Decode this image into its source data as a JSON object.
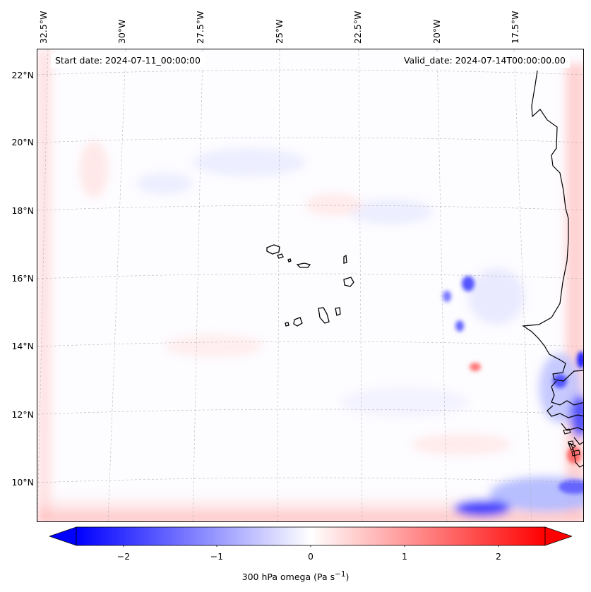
{
  "map": {
    "title_left": "Start date: 2024-07-11_00:00:00",
    "title_right": "Valid_date: 2024-07-14T00:00:00.00",
    "variable": "300 hPa omega",
    "units": "Pa s",
    "units_exponent": "−1",
    "longitude_labels": [
      "32.5°W",
      "30°W",
      "27.5°W",
      "25°W",
      "22.5°W",
      "20°W",
      "17.5°W"
    ],
    "latitude_labels": [
      "22°N",
      "20°N",
      "18°N",
      "16°N",
      "14°N",
      "12°N",
      "10°N"
    ],
    "features": [
      "Cape Verde Islands",
      "West African coastline"
    ]
  },
  "colorbar": {
    "ticks": [
      "−2",
      "−1",
      "0",
      "1",
      "2"
    ],
    "tick_values": [
      -2,
      -1,
      0,
      1,
      2
    ],
    "range": [
      -2.5,
      2.5
    ],
    "extend": "both",
    "color_low": "#0000ff",
    "color_mid": "#ffffff",
    "color_high": "#ff0000"
  }
}
